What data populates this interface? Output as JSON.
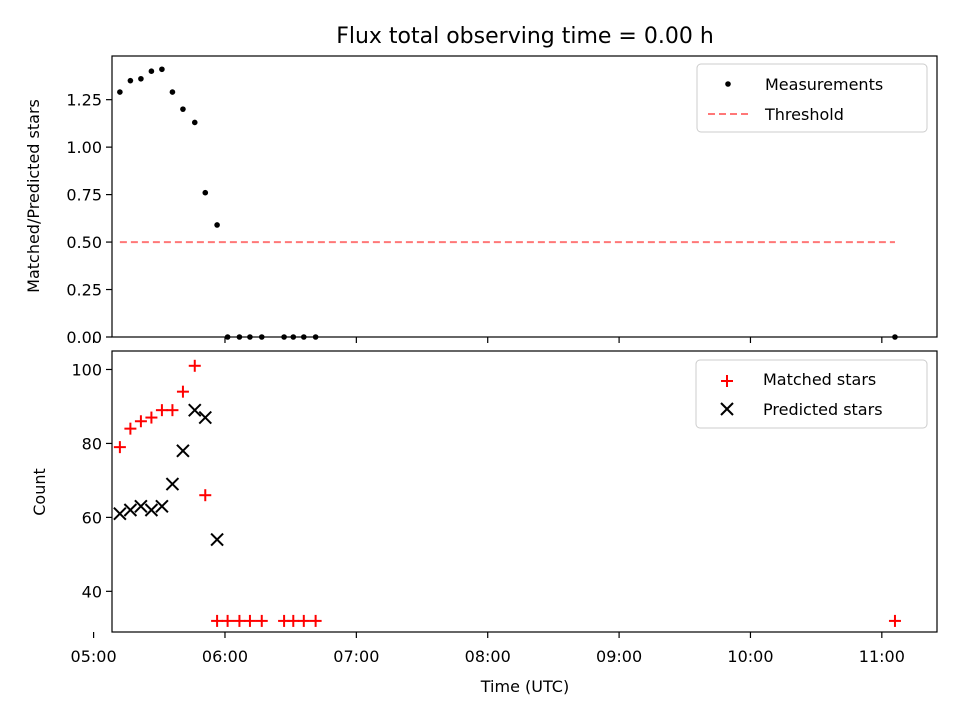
{
  "chart_data": [
    {
      "type": "scatter",
      "title": "Flux total observing time = 0.00 h",
      "xlabel": "",
      "ylabel": "Matched/Predicted stars",
      "xlim": [
        5.14,
        11.42
      ],
      "ylim": [
        0.0,
        1.48
      ],
      "yticks": [
        0.0,
        0.25,
        0.5,
        0.75,
        1.0,
        1.25
      ],
      "ytick_labels": [
        "0.00",
        "0.25",
        "0.50",
        "0.75",
        "1.00",
        "1.25"
      ],
      "legend_position": "top-right",
      "series": [
        {
          "name": "Measurements",
          "marker": "dot",
          "color": "#000000",
          "x": [
            5.2,
            5.28,
            5.36,
            5.44,
            5.52,
            5.6,
            5.68,
            5.77,
            5.85,
            5.94,
            6.02,
            6.11,
            6.19,
            6.28,
            6.45,
            6.52,
            6.6,
            6.69,
            11.1
          ],
          "y": [
            1.29,
            1.35,
            1.36,
            1.4,
            1.41,
            1.29,
            1.2,
            1.13,
            0.76,
            0.59,
            0.0,
            0.0,
            0.0,
            0.0,
            0.0,
            0.0,
            0.0,
            0.0,
            0.0
          ]
        },
        {
          "name": "Threshold",
          "marker": "dashed-line",
          "color": "#ff7777",
          "x": [
            5.2,
            11.1
          ],
          "y": [
            0.5,
            0.5
          ]
        }
      ]
    },
    {
      "type": "scatter",
      "title": "",
      "xlabel": "Time (UTC)",
      "ylabel": "Count",
      "xlim": [
        5.14,
        11.42
      ],
      "ylim": [
        29,
        105
      ],
      "yticks": [
        40,
        60,
        80,
        100
      ],
      "ytick_labels": [
        "40",
        "60",
        "80",
        "100"
      ],
      "xticks": [
        5,
        6,
        7,
        8,
        9,
        10,
        11
      ],
      "xtick_labels": [
        "05:00",
        "06:00",
        "07:00",
        "08:00",
        "09:00",
        "10:00",
        "11:00"
      ],
      "legend_position": "top-right",
      "series": [
        {
          "name": "Matched stars",
          "marker": "plus",
          "color": "#ff0000",
          "x": [
            5.2,
            5.28,
            5.36,
            5.44,
            5.52,
            5.6,
            5.68,
            5.77,
            5.85,
            5.94,
            6.02,
            6.11,
            6.19,
            6.28,
            6.45,
            6.52,
            6.6,
            6.69,
            11.1
          ],
          "y": [
            79,
            84,
            86,
            87,
            89,
            89,
            94,
            101,
            66,
            32,
            32,
            32,
            32,
            32,
            32,
            32,
            32,
            32,
            32
          ]
        },
        {
          "name": "Predicted stars",
          "marker": "x",
          "color": "#000000",
          "x": [
            5.2,
            5.28,
            5.36,
            5.44,
            5.52,
            5.6,
            5.68,
            5.77,
            5.85,
            5.94
          ],
          "y": [
            61,
            62,
            63,
            62,
            63,
            69,
            78,
            89,
            87,
            54
          ]
        }
      ]
    }
  ]
}
